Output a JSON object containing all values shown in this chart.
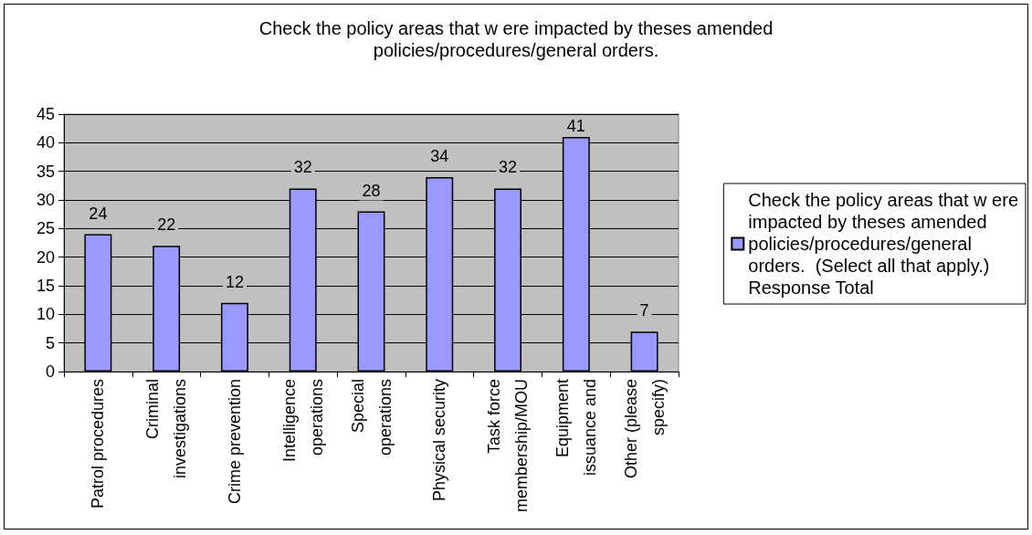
{
  "chart_data": {
    "type": "bar",
    "title": "Check the policy areas that w ere impacted by theses amended policies/procedures/general orders.",
    "categories": [
      "Patrol procedures",
      "Criminal investigations",
      "Crime prevention",
      "Intelligence operations",
      "Special operations",
      "Physical security",
      "Task force membership/MOU",
      "Equipment issuance and",
      "Other (please specify)"
    ],
    "series": [
      {
        "name": "Check the policy areas that w ere impacted by theses amended policies/procedures/general orders.  (Select all that apply.) Response Total",
        "color": "#9999ff",
        "values": [
          24,
          22,
          12,
          32,
          28,
          34,
          32,
          41,
          7
        ]
      }
    ],
    "ylim": [
      0,
      45
    ],
    "yticks": [
      0,
      5,
      10,
      15,
      20,
      25,
      30,
      35,
      40,
      45
    ],
    "grid": "y",
    "legend": "right",
    "data_labels": true
  }
}
